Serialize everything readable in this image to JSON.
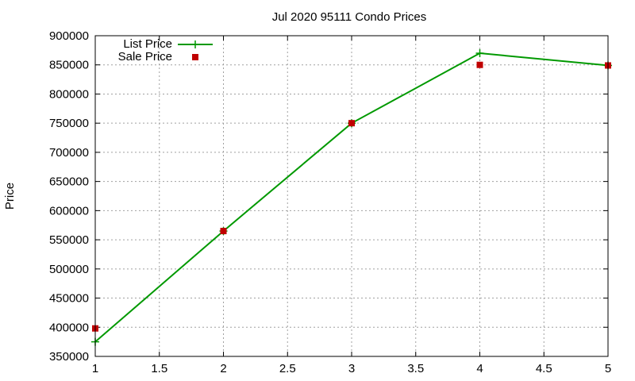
{
  "chart_data": {
    "type": "line",
    "title": "Jul 2020 95111 Condo Prices",
    "xlabel": "",
    "ylabel": "Price",
    "xlim": [
      1,
      5
    ],
    "ylim": [
      350000,
      900000
    ],
    "x_ticks": [
      "1",
      "1.5",
      "2",
      "2.5",
      "3",
      "3.5",
      "4",
      "4.5",
      "5"
    ],
    "y_ticks": [
      "350000",
      "400000",
      "450000",
      "500000",
      "550000",
      "600000",
      "650000",
      "700000",
      "750000",
      "800000",
      "850000",
      "900000"
    ],
    "grid": true,
    "legend_position": "top-left",
    "series": [
      {
        "name": "List Price",
        "style": "line-with-plus",
        "color": "#009900",
        "x": [
          1,
          2,
          3,
          4,
          5
        ],
        "y": [
          375000,
          565000,
          750000,
          870000,
          849000
        ]
      },
      {
        "name": "Sale Price",
        "style": "square-points",
        "color": "#c00000",
        "x": [
          1,
          2,
          3,
          4,
          5
        ],
        "y": [
          398000,
          565000,
          750000,
          850000,
          849000
        ]
      }
    ]
  }
}
